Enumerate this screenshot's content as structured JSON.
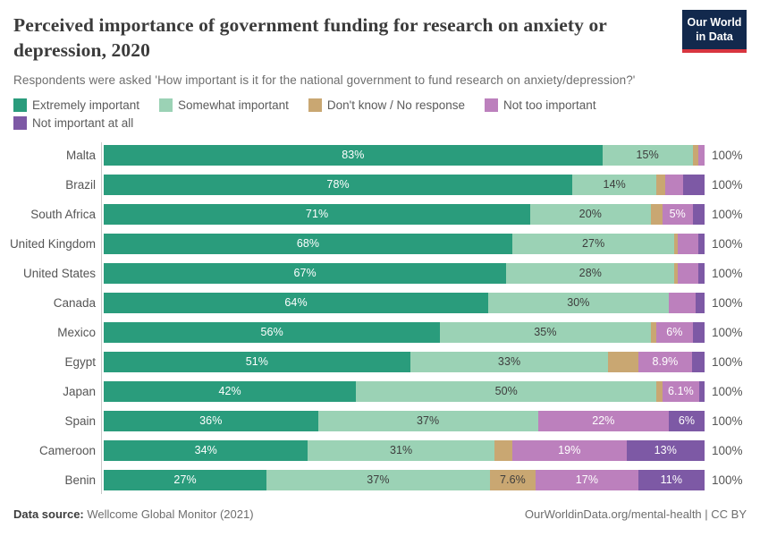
{
  "header": {
    "title": "Perceived importance of government funding for research on anxiety or depression, 2020",
    "subtitle": "Respondents were asked 'How important is it for the national government to fund research on anxiety/depression?'",
    "logo": {
      "line1": "Our World",
      "line2": "in Data"
    }
  },
  "colors": {
    "logo_bg": "#12294d",
    "logo_stripe": "#d8353f",
    "series": [
      "#2a9c7c",
      "#9bd2b5",
      "#c9a772",
      "#bc80bd",
      "#7d59a5"
    ],
    "segment_label": [
      "#ffffff",
      "#3d3d3d",
      "#3d3d3d",
      "#ffffff",
      "#ffffff"
    ]
  },
  "legend": [
    {
      "label": "Extremely important",
      "color": "#2a9c7c"
    },
    {
      "label": "Somewhat important",
      "color": "#9bd2b5"
    },
    {
      "label": "Don't know / No response",
      "color": "#c9a772"
    },
    {
      "label": "Not too important",
      "color": "#bc80bd"
    },
    {
      "label": "Not important at all",
      "color": "#7d59a5"
    }
  ],
  "chart_data": {
    "type": "bar",
    "orientation": "horizontal",
    "stacked": true,
    "unit": "%",
    "xlim": [
      0,
      100
    ],
    "series_names": [
      "Extremely important",
      "Somewhat important",
      "Don't know / No response",
      "Not too important",
      "Not important at all"
    ],
    "categories": [
      "Malta",
      "Brazil",
      "South Africa",
      "United Kingdom",
      "United States",
      "Canada",
      "Mexico",
      "Egypt",
      "Japan",
      "Spain",
      "Cameroon",
      "Benin"
    ],
    "rows": [
      {
        "country": "Malta",
        "values": [
          83,
          15,
          1,
          1,
          0
        ],
        "labels": [
          "83%",
          "15%",
          "",
          "",
          ""
        ],
        "total_label": "100%"
      },
      {
        "country": "Brazil",
        "values": [
          78,
          14,
          1.5,
          3,
          3.5
        ],
        "labels": [
          "78%",
          "14%",
          "",
          "",
          ""
        ],
        "total_label": "100%"
      },
      {
        "country": "South Africa",
        "values": [
          71,
          20,
          2,
          5,
          2
        ],
        "labels": [
          "71%",
          "20%",
          "",
          "5%",
          ""
        ],
        "total_label": "100%"
      },
      {
        "country": "United Kingdom",
        "values": [
          68,
          27,
          0.5,
          3.5,
          1
        ],
        "labels": [
          "68%",
          "27%",
          "",
          "",
          ""
        ],
        "total_label": "100%"
      },
      {
        "country": "United States",
        "values": [
          67,
          28,
          0.5,
          3.5,
          1
        ],
        "labels": [
          "67%",
          "28%",
          "",
          "",
          ""
        ],
        "total_label": "100%"
      },
      {
        "country": "Canada",
        "values": [
          64,
          30,
          0,
          4.5,
          1.5
        ],
        "labels": [
          "64%",
          "30%",
          "",
          "",
          ""
        ],
        "total_label": "100%"
      },
      {
        "country": "Mexico",
        "values": [
          56,
          35,
          1,
          6,
          2
        ],
        "labels": [
          "56%",
          "35%",
          "",
          "6%",
          ""
        ],
        "total_label": "100%"
      },
      {
        "country": "Egypt",
        "values": [
          51,
          33,
          5,
          8.9,
          2.1
        ],
        "labels": [
          "51%",
          "33%",
          "",
          "8.9%",
          ""
        ],
        "total_label": "100%"
      },
      {
        "country": "Japan",
        "values": [
          42,
          50,
          1,
          6.1,
          0.9
        ],
        "labels": [
          "42%",
          "50%",
          "",
          "6.1%",
          ""
        ],
        "total_label": "100%"
      },
      {
        "country": "Spain",
        "values": [
          36,
          37,
          0,
          22,
          6
        ],
        "labels": [
          "36%",
          "37%",
          "",
          "22%",
          "6%"
        ],
        "total_label": "100%"
      },
      {
        "country": "Cameroon",
        "values": [
          34,
          31,
          3,
          19,
          13
        ],
        "labels": [
          "34%",
          "31%",
          "",
          "19%",
          "13%"
        ],
        "total_label": "100%"
      },
      {
        "country": "Benin",
        "values": [
          27,
          37,
          7.6,
          17,
          11
        ],
        "labels": [
          "27%",
          "37%",
          "7.6%",
          "17%",
          "11%"
        ],
        "total_label": "100%"
      }
    ]
  },
  "footer": {
    "source_label": "Data source:",
    "source": "Wellcome Global Monitor (2021)",
    "credit": "OurWorldinData.org/mental-health | CC BY"
  }
}
